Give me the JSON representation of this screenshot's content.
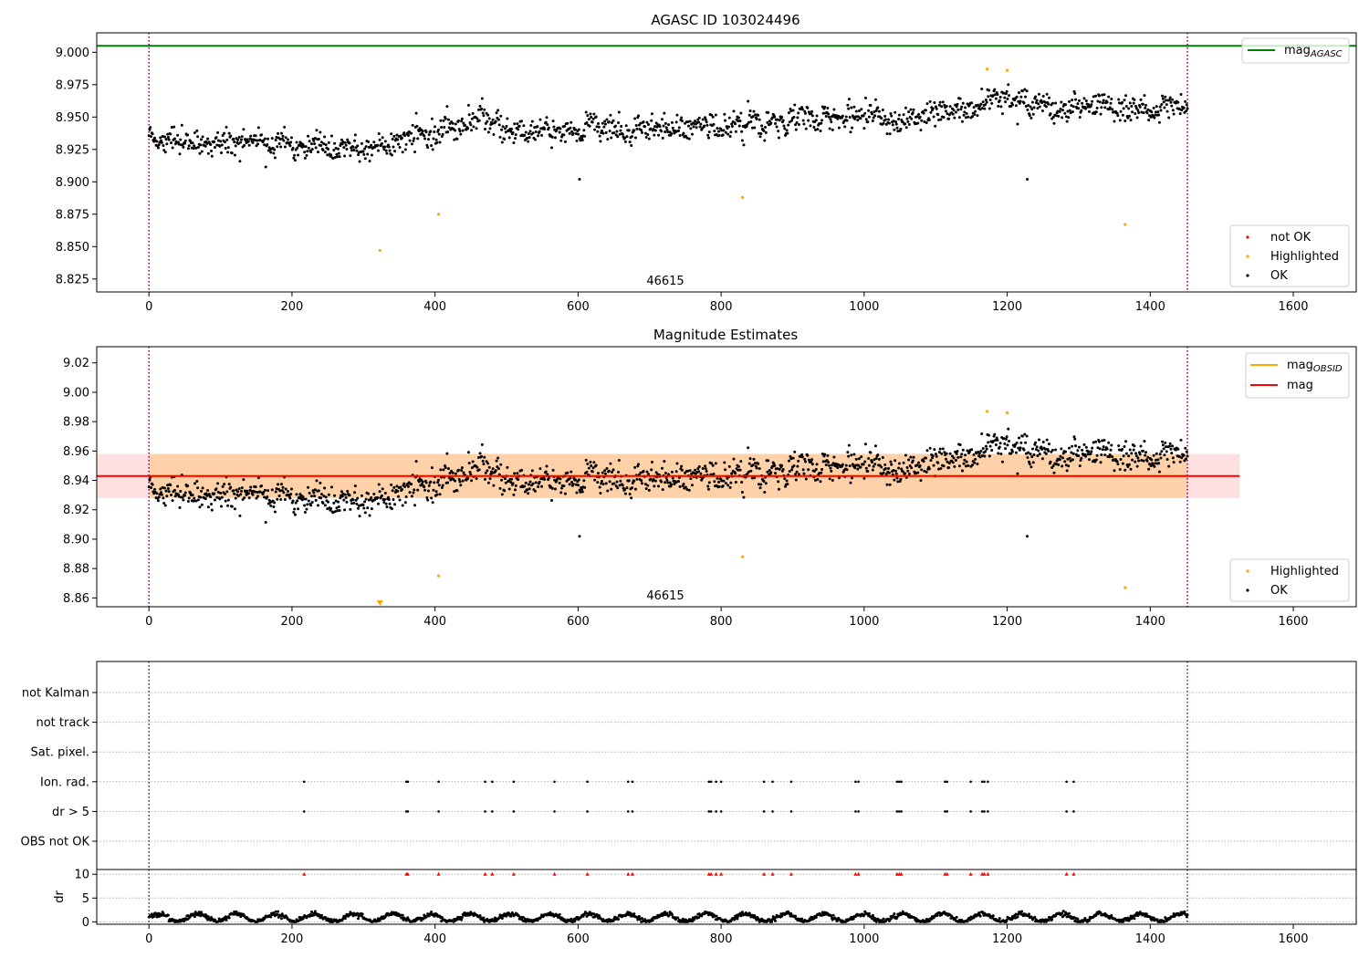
{
  "chart_data": [
    {
      "type": "scatter",
      "title": "AGASC ID 103024496",
      "xlim": [
        -73,
        1688
      ],
      "ylim": [
        8.815,
        9.015
      ],
      "xticks": [
        0,
        200,
        400,
        600,
        800,
        1000,
        1200,
        1400,
        1600
      ],
      "yticks": [
        8.825,
        8.85,
        8.875,
        8.9,
        8.925,
        8.95,
        8.975,
        9.0
      ],
      "ytick_decimals": 3,
      "vlines": [
        0,
        1452
      ],
      "hline": {
        "label": "mag_AGASC",
        "value": 9.005,
        "color": "#008000"
      },
      "annotation": {
        "text": "46615",
        "x": 722
      },
      "legend_upper": {
        "position": "top-right",
        "entries": [
          {
            "label": "mag",
            "subscript": "AGASC",
            "color": "#008000",
            "kind": "line"
          }
        ]
      },
      "legend_lower": {
        "position": "bottom-right",
        "entries": [
          {
            "label": "not OK",
            "color": "#ff0000",
            "kind": "dot"
          },
          {
            "label": "Highlighted",
            "color": "#ffa500",
            "kind": "dot"
          },
          {
            "label": "OK",
            "color": "#000000",
            "kind": "dot"
          }
        ]
      },
      "highlighted_points": [
        [
          323,
          8.847
        ],
        [
          405,
          8.875
        ],
        [
          830,
          8.888
        ],
        [
          1365,
          8.867
        ],
        [
          1172,
          8.987
        ],
        [
          1200,
          8.986
        ]
      ],
      "outliers": [
        [
          602,
          8.902
        ],
        [
          1228,
          8.902
        ]
      ],
      "series_trend": [
        [
          0,
          8.935
        ],
        [
          100,
          8.93
        ],
        [
          200,
          8.928
        ],
        [
          300,
          8.926
        ],
        [
          380,
          8.935
        ],
        [
          460,
          8.95
        ],
        [
          520,
          8.935
        ],
        [
          600,
          8.94
        ],
        [
          700,
          8.943
        ],
        [
          800,
          8.943
        ],
        [
          900,
          8.946
        ],
        [
          1000,
          8.95
        ],
        [
          1100,
          8.952
        ],
        [
          1150,
          8.956
        ],
        [
          1200,
          8.968
        ],
        [
          1230,
          8.958
        ],
        [
          1300,
          8.958
        ],
        [
          1400,
          8.956
        ],
        [
          1452,
          8.965
        ]
      ],
      "ok_point_count": 1450,
      "scatter_sd": 0.008
    },
    {
      "type": "scatter",
      "title": "Magnitude Estimates",
      "xlim": [
        -73,
        1688
      ],
      "ylim": [
        8.854,
        9.031
      ],
      "xticks": [
        0,
        200,
        400,
        600,
        800,
        1000,
        1200,
        1400,
        1600
      ],
      "yticks": [
        8.86,
        8.88,
        8.9,
        8.92,
        8.94,
        8.96,
        8.98,
        9.0,
        9.02
      ],
      "ytick_decimals": 2,
      "vlines": [
        0,
        1452
      ],
      "mag_obsid_band": {
        "x": [
          0,
          1452
        ],
        "center": 8.943,
        "halfwidth": 0.015,
        "color": "#ffa500"
      },
      "mag_band": {
        "x": [
          -73,
          1525
        ],
        "center": 8.943,
        "halfwidth": 0.015,
        "color": "#ff0000"
      },
      "mag_line": {
        "value": 8.943,
        "x": [
          -73,
          1525
        ]
      },
      "annotation": {
        "text": "46615",
        "x": 722
      },
      "legend_upper": {
        "position": "top-right",
        "entries": [
          {
            "label": "mag",
            "subscript": "OBSID",
            "color": "#ffa500",
            "kind": "line"
          },
          {
            "label": "mag",
            "color": "#ff0000",
            "kind": "line"
          }
        ]
      },
      "legend_lower": {
        "position": "bottom-right",
        "entries": [
          {
            "label": "Highlighted",
            "color": "#ffa500",
            "kind": "dot"
          },
          {
            "label": "OK",
            "color": "#000000",
            "kind": "dot"
          }
        ]
      },
      "offscale_marker": {
        "x": 323,
        "color": "#ffa500"
      }
    },
    {
      "type": "scatter",
      "xlim": [
        -73,
        1688
      ],
      "xticks": [
        0,
        200,
        400,
        600,
        800,
        1000,
        1200,
        1400,
        1600
      ],
      "vlines": [
        0,
        1452
      ],
      "flag_categories": [
        "not Kalman",
        "not track",
        "Sat. pixel.",
        "Ion. rad.",
        "dr > 5",
        "OBS not OK"
      ],
      "flagged_x": [
        217,
        360,
        362,
        405,
        470,
        480,
        510,
        567,
        613,
        670,
        676,
        783,
        786,
        793,
        800,
        860,
        872,
        898,
        988,
        992,
        1046,
        1049,
        1052,
        1113,
        1116,
        1149,
        1165,
        1168,
        1173,
        1283,
        1293
      ],
      "dr_ylim": [
        -0.5,
        11
      ],
      "dr_yticks": [
        0,
        5,
        10
      ],
      "dr_ylabel": "dr",
      "dr_flag_value": 10,
      "dr_point_count": 1450
    }
  ]
}
